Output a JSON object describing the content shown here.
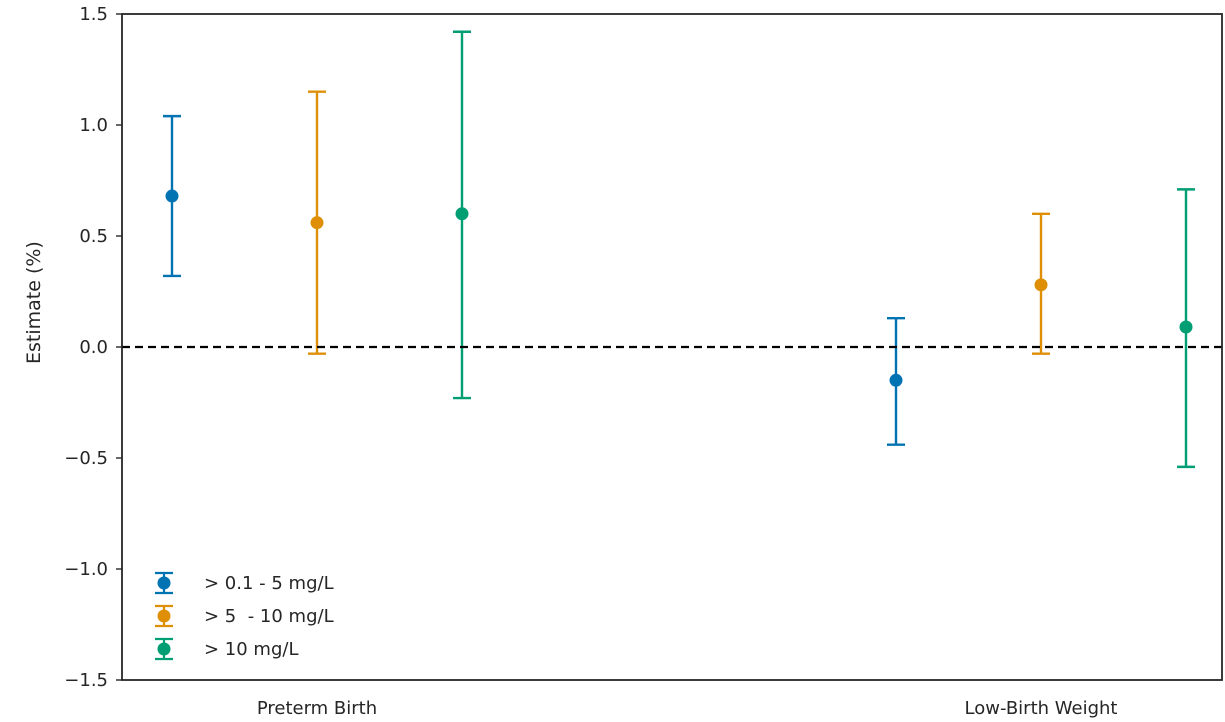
{
  "chart_data": {
    "type": "errorbar",
    "categories": [
      "Preterm Birth",
      "Low-Birth Weight"
    ],
    "ylabel": "Estimate (%)",
    "xlabel": "",
    "ylim": [
      -1.5,
      1.5
    ],
    "yticks": [
      -1.5,
      -1.0,
      -0.5,
      0.0,
      0.5,
      1.0,
      1.5
    ],
    "ytick_labels": [
      "−1.5",
      "−1.0",
      "−0.5",
      "0.0",
      "0.5",
      "1.0",
      "1.5"
    ],
    "reference_line": {
      "y": 0,
      "style": "dashed",
      "color": "#000000"
    },
    "grid": false,
    "legend_position": "lower-left",
    "series": [
      {
        "name": "> 0.1 - 5 mg/L",
        "color": "#0173b2",
        "points": [
          {
            "category": "Preterm Birth",
            "estimate": 0.68,
            "lower": 0.32,
            "upper": 1.04
          },
          {
            "category": "Low-Birth Weight",
            "estimate": -0.15,
            "lower": -0.44,
            "upper": 0.13
          }
        ]
      },
      {
        "name": "> 5  - 10 mg/L",
        "color": "#de8f05",
        "points": [
          {
            "category": "Preterm Birth",
            "estimate": 0.56,
            "lower": -0.03,
            "upper": 1.15
          },
          {
            "category": "Low-Birth Weight",
            "estimate": 0.28,
            "lower": -0.03,
            "upper": 0.6
          }
        ]
      },
      {
        "name": "> 10 mg/L",
        "color": "#029e73",
        "points": [
          {
            "category": "Preterm Birth",
            "estimate": 0.6,
            "lower": -0.23,
            "upper": 1.42
          },
          {
            "category": "Low-Birth Weight",
            "estimate": 0.09,
            "lower": -0.54,
            "upper": 0.71
          }
        ]
      }
    ]
  }
}
